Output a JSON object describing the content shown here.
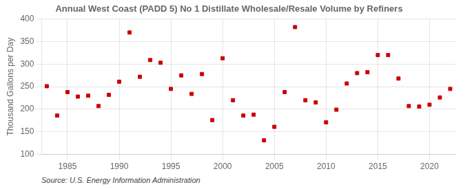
{
  "chart_data": {
    "type": "scatter",
    "title": "Annual West Coast (PADD 5) No 1 Distillate Wholesale/Resale Volume by Refiners",
    "ylabel": "Thousand Gallons per Day",
    "annotations": [
      "Source: U.S. Energy Information Administration"
    ],
    "x": [
      1983,
      1984,
      1985,
      1986,
      1987,
      1988,
      1989,
      1990,
      1991,
      1992,
      1993,
      1994,
      1995,
      1996,
      1997,
      1998,
      1999,
      2000,
      2001,
      2002,
      2003,
      2004,
      2005,
      2006,
      2007,
      2008,
      2009,
      2010,
      2011,
      2012,
      2013,
      2014,
      2015,
      2016,
      2017,
      2018,
      2019,
      2020,
      2021,
      2022
    ],
    "values": [
      251,
      186,
      238,
      228,
      230,
      207,
      232,
      261,
      370,
      272,
      309,
      303,
      245,
      275,
      234,
      278,
      176,
      313,
      220,
      186,
      188,
      131,
      161,
      238,
      382,
      220,
      215,
      171,
      199,
      257,
      280,
      282,
      320,
      320,
      268,
      207,
      206,
      210,
      226,
      245
    ],
    "color": "#cc0000",
    "marker": "square",
    "xlim": [
      1982.5,
      2022.5
    ],
    "xticks": [
      1985,
      1990,
      1995,
      2000,
      2005,
      2010,
      2015,
      2020
    ],
    "ylim": [
      100,
      400
    ],
    "yticks": [
      100,
      150,
      200,
      250,
      300,
      350,
      400
    ],
    "grid": true
  }
}
